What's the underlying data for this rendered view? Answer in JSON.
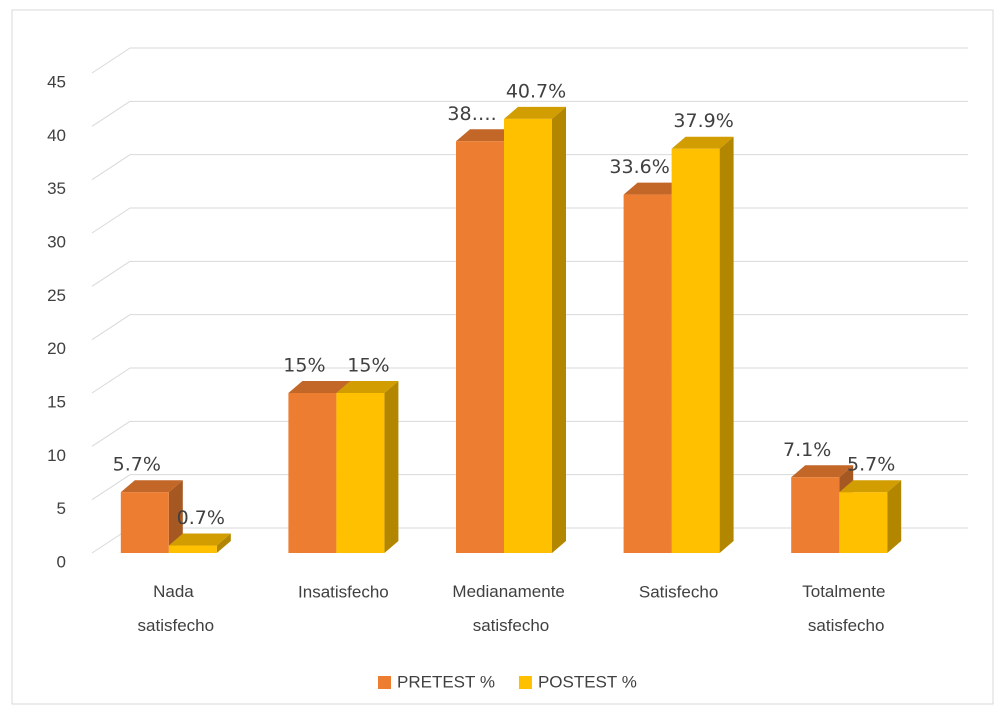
{
  "chart_data": {
    "type": "bar3d",
    "categories": [
      "Nada satisfecho",
      "Insatisfecho",
      "Medianamente satisfecho",
      "Satisfecho",
      "Totalmente satisfecho"
    ],
    "series": [
      {
        "name": "PRETEST %",
        "color": "#ed7d31",
        "values": [
          5.7,
          15,
          38.6,
          33.6,
          7.1
        ],
        "value_labels": [
          "5.7%",
          "15%",
          "38….",
          "33.6%",
          "7.1%"
        ]
      },
      {
        "name": "POSTEST %",
        "color": "#ffc000",
        "values": [
          0.7,
          15,
          40.7,
          37.9,
          5.7
        ],
        "value_labels": [
          "0.7%",
          "15%",
          "40.7%",
          "37.9%",
          "5.7%"
        ]
      }
    ],
    "ylim": [
      0,
      45
    ],
    "yticks": [
      0,
      5,
      10,
      15,
      20,
      25,
      30,
      35,
      40,
      45
    ],
    "grid": true,
    "legend": "bottom"
  }
}
